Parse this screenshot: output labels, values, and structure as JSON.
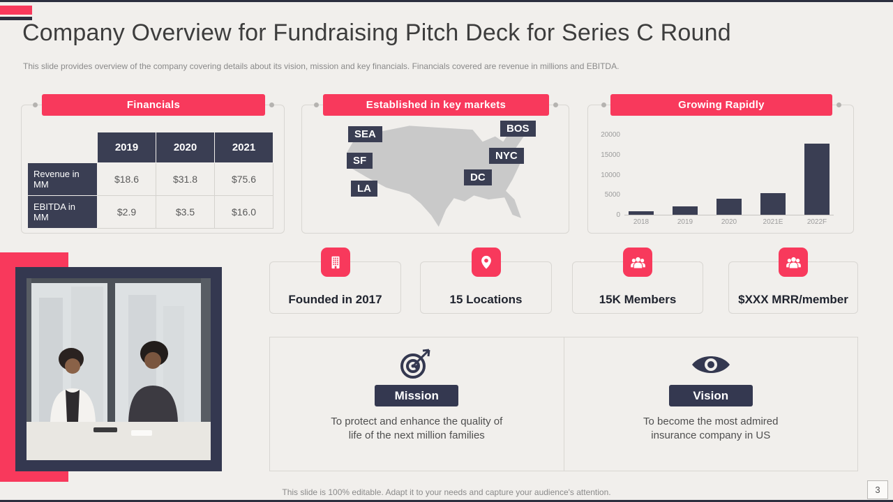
{
  "slide": {
    "title": "Company Overview for Fundraising Pitch Deck for Series C Round",
    "subtitle": "This slide provides overview of the company covering details about its vision, mission and key financials. Financials covered are revenue in millions and EBITDA.",
    "footer": "This slide is 100% editable. Adapt it to your needs and capture your audience's attention.",
    "page_number": "3"
  },
  "colors": {
    "accent": "#f8395c",
    "dark_navy": "#3a3e53",
    "background": "#f1efec",
    "map_gray": "#c9c9c9"
  },
  "financials": {
    "header": "Financials",
    "table": {
      "col_headers": [
        "2019",
        "2020",
        "2021"
      ],
      "rows": [
        {
          "label": "Revenue in MM",
          "values": [
            "$18.6",
            "$31.8",
            "$75.6"
          ]
        },
        {
          "label": "EBITDA in MM",
          "values": [
            "$2.9",
            "$3.5",
            "$16.0"
          ]
        }
      ]
    }
  },
  "markets": {
    "header": "Established in key markets",
    "labels": [
      "SEA",
      "BOS",
      "SF",
      "NYC",
      "LA",
      "DC"
    ]
  },
  "growth": {
    "header": "Growing Rapidly",
    "chart_data": {
      "type": "bar",
      "title": "Growing Rapidly",
      "categories": [
        "2018",
        "2019",
        "2020",
        "2021E",
        "2022F"
      ],
      "values": [
        800,
        2000,
        3900,
        5400,
        17500
      ],
      "yticks": [
        0,
        5000,
        10000,
        15000,
        20000
      ],
      "ylim": [
        0,
        20000
      ],
      "bar_color": "#3a3e53",
      "grid": false,
      "legend": false
    }
  },
  "stats": [
    {
      "icon": "building-icon",
      "label": "Founded in 2017"
    },
    {
      "icon": "location-pin-icon",
      "label": "15 Locations"
    },
    {
      "icon": "members-group-icon",
      "label": "15K Members"
    },
    {
      "icon": "mrr-group-icon",
      "label": "$XXX MRR/member"
    }
  ],
  "mission": {
    "label": "Mission",
    "text": "To protect and enhance the quality of life of the next million families"
  },
  "vision": {
    "label": "Vision",
    "text": "To become the most admired insurance company in US"
  }
}
